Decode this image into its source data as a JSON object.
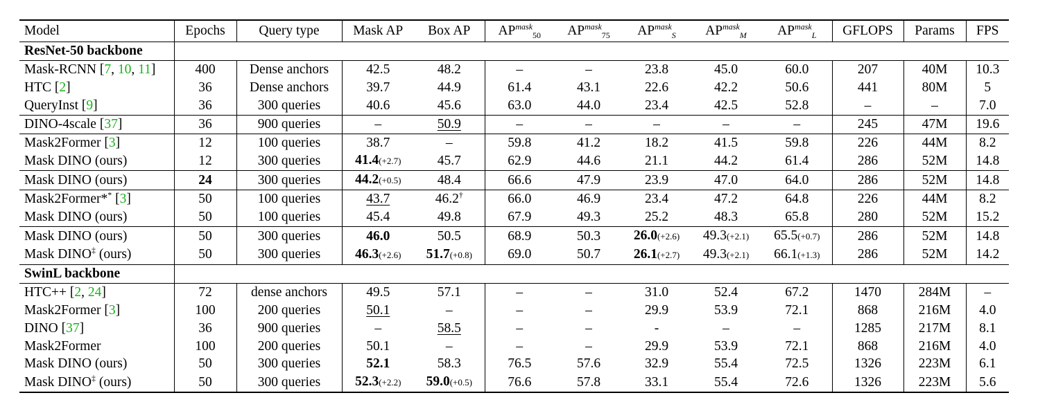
{
  "header": [
    "Model",
    "Epochs",
    "Query type",
    "Mask AP",
    "Box AP",
    "AP",
    "AP",
    "AP",
    "AP",
    "AP",
    "GFLOPS",
    "Params",
    "FPS"
  ],
  "header_ap_sup": [
    "mask",
    "mask",
    "mask",
    "mask",
    "mask"
  ],
  "header_ap_sub": [
    "50",
    "75",
    "S",
    "M",
    "L"
  ],
  "sections": [
    {
      "title": "ResNet-50 backbone",
      "rows": [
        {
          "model": "Mask-RCNN [7, 10, 11]",
          "cells": [
            "400",
            "Dense anchors",
            "42.5",
            "48.2",
            "–",
            "–",
            "23.8",
            "45.0",
            "60.0",
            "207",
            "40M",
            "10.3"
          ]
        },
        {
          "model": "HTC [2]",
          "cells": [
            "36",
            "Dense anchors",
            "39.7",
            "44.9",
            "61.4",
            "43.1",
            "22.6",
            "42.2",
            "50.6",
            "441",
            "80M",
            "5"
          ]
        },
        {
          "model": "QueryInst [9]",
          "cells": [
            "36",
            "300 queries",
            "40.6",
            "45.6",
            "63.0",
            "44.0",
            "23.4",
            "42.5",
            "52.8",
            "–",
            "–",
            "7.0"
          ]
        },
        {
          "model": "DINO-4scale [37]",
          "cells": [
            "36",
            "900 queries",
            "–",
            "50.9",
            "–",
            "–",
            "–",
            "–",
            "–",
            "245",
            "47M",
            "19.6"
          ]
        },
        {
          "model": "Mask2Former [3]",
          "cells": [
            "12",
            "100 queries",
            "38.7",
            "–",
            "59.8",
            "41.2",
            "18.2",
            "41.5",
            "59.8",
            "226",
            "44M",
            "8.2"
          ]
        },
        {
          "model": "Mask DINO (ours)",
          "cells": [
            "12",
            "300 queries",
            "41.4",
            "45.7",
            "62.9",
            "44.6",
            "21.1",
            "44.2",
            "61.4",
            "286",
            "52M",
            "14.8"
          ]
        },
        {
          "model": "Mask DINO (ours)",
          "cells": [
            "24",
            "300 queries",
            "44.2",
            "48.4",
            "66.6",
            "47.9",
            "23.9",
            "47.0",
            "64.0",
            "286",
            "52M",
            "14.8"
          ]
        },
        {
          "model": "Mask2Former* [3]",
          "cells": [
            "50",
            "100 queries",
            "43.7",
            "46.2",
            "66.0",
            "46.9",
            "23.4",
            "47.2",
            "64.8",
            "226",
            "44M",
            "8.2"
          ]
        },
        {
          "model": "Mask DINO (ours)",
          "cells": [
            "50",
            "100 queries",
            "45.4",
            "49.8",
            "67.9",
            "49.3",
            "25.2",
            "48.3",
            "65.8",
            "280",
            "52M",
            "15.2"
          ]
        },
        {
          "model": "Mask DINO (ours)",
          "cells": [
            "50",
            "300 queries",
            "46.0",
            "50.5",
            "68.9",
            "50.3",
            "26.0",
            "49.3",
            "65.5",
            "286",
            "52M",
            "14.8"
          ]
        },
        {
          "model": "Mask DINO (ours)",
          "cells": [
            "50",
            "300 queries",
            "46.3",
            "51.7",
            "69.0",
            "50.7",
            "26.1",
            "49.3",
            "66.1",
            "286",
            "52M",
            "14.2"
          ]
        }
      ]
    },
    {
      "title": "SwinL backbone",
      "rows": [
        {
          "model": "HTC++ [2, 24]",
          "cells": [
            "72",
            "dense anchors",
            "49.5",
            "57.1",
            "–",
            "–",
            "31.0",
            "52.4",
            "67.2",
            "1470",
            "284M",
            "–"
          ]
        },
        {
          "model": "Mask2Former [3]",
          "cells": [
            "100",
            "200 queries",
            "50.1",
            "–",
            "–",
            "–",
            "29.9",
            "53.9",
            "72.1",
            "868",
            "216M",
            "4.0"
          ]
        },
        {
          "model": "DINO [37]",
          "cells": [
            "36",
            "900 queries",
            "–",
            "58.5",
            "–",
            "–",
            "-",
            "–",
            "–",
            "1285",
            "217M",
            "8.1"
          ]
        },
        {
          "model": "Mask2Former",
          "cells": [
            "100",
            "200 queries",
            "50.1",
            "–",
            "–",
            "–",
            "29.9",
            "53.9",
            "72.1",
            "868",
            "216M",
            "4.0"
          ]
        },
        {
          "model": "Mask DINO (ours)",
          "cells": [
            "50",
            "300 queries",
            "52.1",
            "58.3",
            "76.5",
            "57.6",
            "32.9",
            "55.4",
            "72.5",
            "1326",
            "223M",
            "6.1"
          ]
        },
        {
          "model": "Mask DINO (ours)",
          "cells": [
            "50",
            "300 queries",
            "52.3",
            "59.0",
            "76.6",
            "57.8",
            "33.1",
            "55.4",
            "72.6",
            "1326",
            "223M",
            "5.6"
          ]
        }
      ]
    }
  ],
  "marks": {
    "dagger": "†",
    "double_dagger": "‡",
    "star": "*",
    "r50_mdino12_maskap_delta": "(+2.7)",
    "r50_mdino24_maskap_delta": "(+0.5)",
    "r50_mdino300_apS_delta": "(+2.6)",
    "r50_mdino300_apM_delta": "(+2.1)",
    "r50_mdino300_apL_delta": "(+0.7)",
    "r50_mdinoDD_maskap_delta": "(+2.6)",
    "r50_mdinoDD_boxap_delta": "(+0.8)",
    "r50_mdinoDD_apS_delta": "(+2.7)",
    "r50_mdinoDD_apM_delta": "(+2.1)",
    "r50_mdinoDD_apL_delta": "(+1.3)",
    "swin_mdinoDD_maskap_delta": "(+2.2)",
    "swin_mdinoDD_boxap_delta": "(+0.5)"
  },
  "cite_color": "#19b219"
}
